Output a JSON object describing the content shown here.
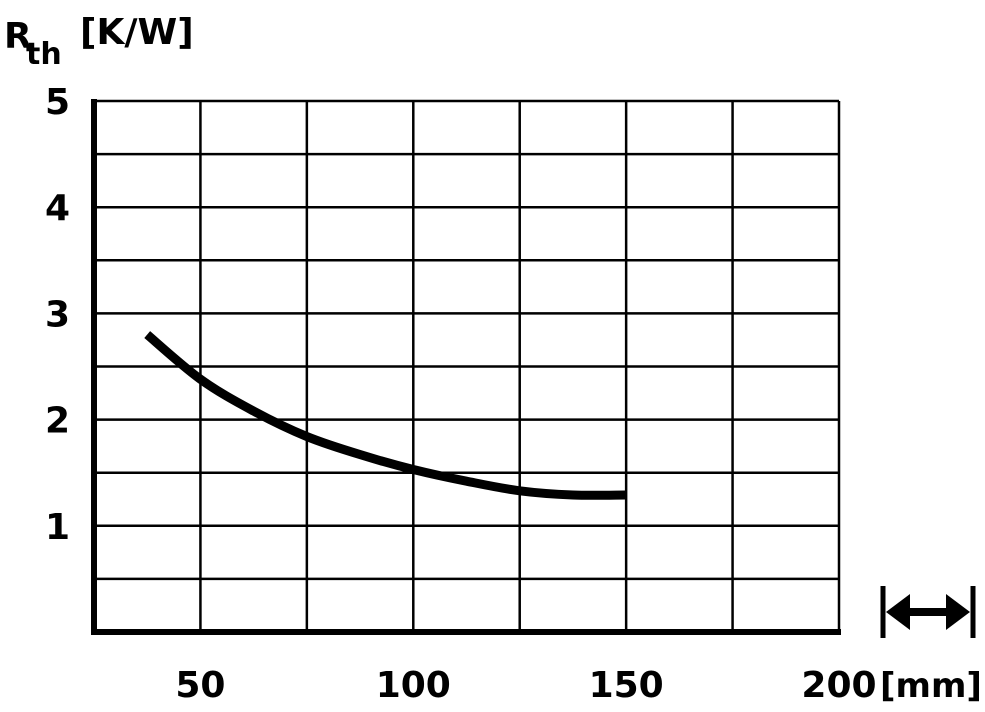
{
  "chart_data": {
    "type": "line",
    "ylabel_main": "R",
    "ylabel_sub": "th",
    "ylabel_unit": "[K/W]",
    "xlabel_unit": "[mm]",
    "xlim": [
      25,
      200
    ],
    "ylim": [
      0,
      5
    ],
    "grid": true,
    "x_ticks": [
      {
        "value": 50,
        "label": "50"
      },
      {
        "value": 100,
        "label": "100"
      },
      {
        "value": 150,
        "label": "150"
      },
      {
        "value": 200,
        "label": "200"
      }
    ],
    "y_ticks": [
      {
        "value": 1,
        "label": "1"
      },
      {
        "value": 2,
        "label": "2"
      },
      {
        "value": 3,
        "label": "3"
      },
      {
        "value": 4,
        "label": "4"
      },
      {
        "value": 5,
        "label": "5"
      }
    ],
    "series": [
      {
        "x": [
          37.5,
          50,
          62.5,
          75,
          87.5,
          100,
          112.5,
          125,
          137.5,
          150
        ],
        "y": [
          2.8,
          2.38,
          2.08,
          1.84,
          1.67,
          1.53,
          1.42,
          1.33,
          1.29,
          1.29
        ]
      }
    ],
    "icon": "width-arrow-icon"
  }
}
